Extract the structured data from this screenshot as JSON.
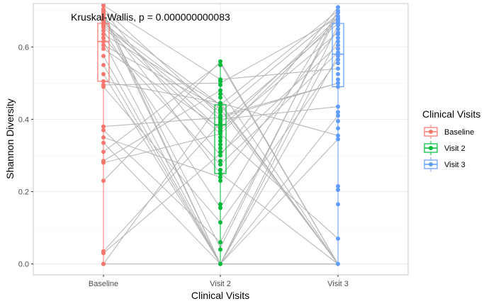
{
  "chart_data": {
    "type": "scatter",
    "annotation": "Kruskal-Wallis, p = 0.000000000083",
    "xlabel": "Clinical Visits",
    "ylabel": "Shannon Diversity",
    "categories": [
      "Baseline",
      "Visit 2",
      "Visit 3"
    ],
    "ylim": [
      -0.03,
      0.72
    ],
    "y_ticks": [
      "0.0",
      "0.2",
      "0.4",
      "0.6"
    ],
    "y_tick_values": [
      0.0,
      0.2,
      0.4,
      0.6
    ],
    "grid": true,
    "legend": {
      "title": "Clinical Visits",
      "position": "right",
      "entries": [
        "Baseline",
        "Visit 2",
        "Visit 3"
      ]
    },
    "colors": {
      "Baseline": "#F8766D",
      "Visit 2": "#00BA38",
      "Visit 3": "#619CFF",
      "line": "#B3B3B3",
      "grid": "#EBEBEB",
      "panel_border": "#C8C8C8"
    },
    "boxplots": [
      {
        "name": "Baseline",
        "q1": 0.505,
        "median": 0.615,
        "q3": 0.665,
        "whisker_low": 0.0,
        "whisker_high": 0.715
      },
      {
        "name": "Visit 2",
        "q1": 0.25,
        "median": 0.385,
        "q3": 0.44,
        "whisker_low": 0.0,
        "whisker_high": 0.56
      },
      {
        "name": "Visit 3",
        "q1": 0.49,
        "median": 0.58,
        "q3": 0.665,
        "whisker_low": 0.0,
        "whisker_high": 0.71
      }
    ],
    "series": [
      {
        "name": "Baseline",
        "values": [
          0.715,
          0.705,
          0.7,
          0.695,
          0.69,
          0.685,
          0.68,
          0.675,
          0.67,
          0.665,
          0.66,
          0.655,
          0.645,
          0.635,
          0.625,
          0.615,
          0.605,
          0.595,
          0.575,
          0.55,
          0.525,
          0.505,
          0.495,
          0.49,
          0.38,
          0.37,
          0.35,
          0.335,
          0.31,
          0.285,
          0.28,
          0.23,
          0.035,
          0.03,
          0.0,
          0.0
        ]
      },
      {
        "name": "Visit 2",
        "values": [
          0.56,
          0.55,
          0.51,
          0.505,
          0.495,
          0.48,
          0.47,
          0.46,
          0.445,
          0.44,
          0.43,
          0.425,
          0.42,
          0.41,
          0.405,
          0.4,
          0.395,
          0.39,
          0.385,
          0.38,
          0.375,
          0.37,
          0.365,
          0.36,
          0.35,
          0.34,
          0.33,
          0.32,
          0.31,
          0.3,
          0.285,
          0.275,
          0.26,
          0.25,
          0.24,
          0.23,
          0.165,
          0.155,
          0.115,
          0.06,
          0.04,
          0.0
        ]
      },
      {
        "name": "Visit 3",
        "values": [
          0.71,
          0.7,
          0.695,
          0.685,
          0.68,
          0.675,
          0.67,
          0.665,
          0.66,
          0.65,
          0.64,
          0.635,
          0.625,
          0.615,
          0.605,
          0.595,
          0.585,
          0.575,
          0.565,
          0.555,
          0.54,
          0.525,
          0.51,
          0.5,
          0.49,
          0.435,
          0.42,
          0.41,
          0.395,
          0.375,
          0.355,
          0.345,
          0.215,
          0.205,
          0.165,
          0.07,
          0.0
        ]
      }
    ],
    "pairs": [
      [
        0.715,
        0.51,
        0.54
      ],
      [
        0.705,
        0.41,
        0.5
      ],
      [
        0.7,
        0.3,
        0.71
      ],
      [
        0.695,
        0.0,
        0.66
      ],
      [
        0.69,
        0.045,
        0.7
      ],
      [
        0.685,
        0.0,
        0.625
      ],
      [
        0.68,
        0.44,
        0.0
      ],
      [
        0.675,
        0.25,
        0.0
      ],
      [
        0.67,
        0.37,
        0.64
      ],
      [
        0.665,
        0.42,
        0.69
      ],
      [
        0.66,
        0.4,
        0.435
      ],
      [
        0.655,
        0.36,
        0.675
      ],
      [
        0.645,
        0.155,
        0.7
      ],
      [
        0.635,
        0.44,
        0.7
      ],
      [
        0.625,
        0.275,
        0.585
      ],
      [
        0.615,
        0.0,
        0.0
      ],
      [
        0.605,
        0.43,
        0.0
      ],
      [
        0.595,
        0.375,
        0.68
      ],
      [
        0.575,
        0.0,
        0.575
      ],
      [
        0.55,
        0.0,
        0.41
      ],
      [
        0.525,
        0.0,
        0.0
      ],
      [
        0.505,
        0.445,
        0.0
      ],
      [
        0.495,
        0.5,
        0.68
      ],
      [
        0.49,
        0.115,
        0.565
      ],
      [
        0.38,
        0.405,
        0.5
      ],
      [
        0.37,
        0.06,
        0.69
      ],
      [
        0.35,
        0.24,
        0.645
      ],
      [
        0.335,
        0.0,
        0.345
      ],
      [
        0.31,
        0.555,
        0.0
      ],
      [
        0.285,
        0.48,
        0.0
      ],
      [
        0.28,
        0.36,
        0.07
      ],
      [
        0.23,
        0.56,
        0.0
      ],
      [
        0.035,
        0.39,
        0.665
      ],
      [
        0.03,
        0.305,
        0.605
      ],
      [
        0.0,
        0.0,
        0.0
      ],
      [
        0.0,
        0.445,
        0.355
      ]
    ]
  }
}
